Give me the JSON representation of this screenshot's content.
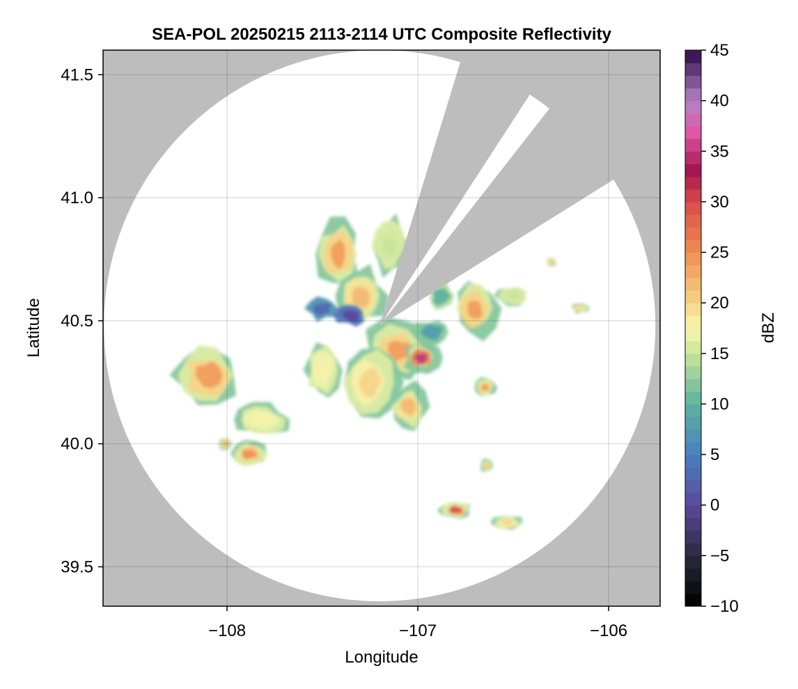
{
  "chart_data": {
    "type": "heatmap",
    "title": "SEA-POL 20250215 2113-2114 UTC Composite Reflectivity",
    "xlabel": "Longitude",
    "ylabel": "Latitude",
    "xlim": [
      -108.65,
      -105.73
    ],
    "ylim": [
      39.34,
      41.6
    ],
    "xticks": [
      -108,
      -107,
      -106
    ],
    "xtick_labels": [
      "−108",
      "−107",
      "−106"
    ],
    "yticks": [
      39.5,
      40.0,
      40.5,
      41.0,
      41.5
    ],
    "ytick_labels": [
      "39.5",
      "40.0",
      "40.5",
      "41.0",
      "41.5"
    ],
    "grid": true,
    "background_color": "#bdbdbd",
    "coverage_color": "#ffffff",
    "radar_center": {
      "lon": -107.2,
      "lat": 40.48
    },
    "coverage_radius_deg_lat": 1.12,
    "blocked_sectors_deg_from_north": [
      [
        17,
        33
      ],
      [
        38,
        58
      ]
    ],
    "colorbar": {
      "label": "dBZ",
      "range": [
        -10,
        45
      ],
      "ticks": [
        -10,
        -5,
        0,
        5,
        10,
        15,
        20,
        25,
        30,
        35,
        40,
        45
      ],
      "tick_labels": [
        "−10",
        "−5",
        "0",
        "5",
        "10",
        "15",
        "20",
        "25",
        "30",
        "35",
        "40",
        "45"
      ],
      "colormap_stops": [
        [
          -10,
          "#000000"
        ],
        [
          -5,
          "#2b2a3e"
        ],
        [
          0,
          "#5b4a9a"
        ],
        [
          5,
          "#4a7fc0"
        ],
        [
          10,
          "#5bb39e"
        ],
        [
          15,
          "#c9e49c"
        ],
        [
          17.5,
          "#f7f7b0"
        ],
        [
          20,
          "#f6d488"
        ],
        [
          25,
          "#ef8f52"
        ],
        [
          30,
          "#d84a4a"
        ],
        [
          33,
          "#a3154e"
        ],
        [
          37,
          "#e05aa8"
        ],
        [
          40,
          "#b184c6"
        ],
        [
          45,
          "#2e0a47"
        ]
      ]
    },
    "echo_cells": [
      {
        "lon": -107.42,
        "lat": 40.77,
        "rlon": 0.12,
        "rlat": 0.15,
        "dbz": 24
      },
      {
        "lon": -107.3,
        "lat": 40.6,
        "rlon": 0.14,
        "rlat": 0.12,
        "dbz": 22
      },
      {
        "lon": -107.15,
        "lat": 40.8,
        "rlon": 0.1,
        "rlat": 0.12,
        "dbz": 15
      },
      {
        "lon": -107.5,
        "lat": 40.55,
        "rlon": 0.08,
        "rlat": 0.05,
        "dbz": 3
      },
      {
        "lon": -107.35,
        "lat": 40.52,
        "rlon": 0.08,
        "rlat": 0.04,
        "dbz": 0
      },
      {
        "lon": -107.1,
        "lat": 40.38,
        "rlon": 0.18,
        "rlat": 0.12,
        "dbz": 24
      },
      {
        "lon": -106.98,
        "lat": 40.35,
        "rlon": 0.1,
        "rlat": 0.06,
        "dbz": 35
      },
      {
        "lon": -106.92,
        "lat": 40.45,
        "rlon": 0.1,
        "rlat": 0.06,
        "dbz": 8
      },
      {
        "lon": -107.25,
        "lat": 40.25,
        "rlon": 0.15,
        "rlat": 0.15,
        "dbz": 20
      },
      {
        "lon": -107.05,
        "lat": 40.15,
        "rlon": 0.1,
        "rlat": 0.1,
        "dbz": 22
      },
      {
        "lon": -107.5,
        "lat": 40.3,
        "rlon": 0.1,
        "rlat": 0.12,
        "dbz": 18
      },
      {
        "lon": -106.7,
        "lat": 40.55,
        "rlon": 0.12,
        "rlat": 0.12,
        "dbz": 24
      },
      {
        "lon": -106.88,
        "lat": 40.6,
        "rlon": 0.08,
        "rlat": 0.06,
        "dbz": 10
      },
      {
        "lon": -106.5,
        "lat": 40.6,
        "rlon": 0.09,
        "rlat": 0.04,
        "dbz": 15
      },
      {
        "lon": -106.65,
        "lat": 40.23,
        "rlon": 0.06,
        "rlat": 0.04,
        "dbz": 24
      },
      {
        "lon": -108.1,
        "lat": 40.28,
        "rlon": 0.18,
        "rlat": 0.14,
        "dbz": 24
      },
      {
        "lon": -107.82,
        "lat": 40.1,
        "rlon": 0.15,
        "rlat": 0.07,
        "dbz": 18
      },
      {
        "lon": -107.88,
        "lat": 39.96,
        "rlon": 0.1,
        "rlat": 0.06,
        "dbz": 25
      },
      {
        "lon": -108.01,
        "lat": 40.0,
        "rlon": 0.03,
        "rlat": 0.03,
        "dbz": 24
      },
      {
        "lon": -106.8,
        "lat": 39.73,
        "rlon": 0.09,
        "rlat": 0.04,
        "dbz": 30
      },
      {
        "lon": -106.53,
        "lat": 39.68,
        "rlon": 0.08,
        "rlat": 0.03,
        "dbz": 20
      },
      {
        "lon": -106.3,
        "lat": 40.74,
        "rlon": 0.03,
        "rlat": 0.02,
        "dbz": 22
      },
      {
        "lon": -106.15,
        "lat": 40.55,
        "rlon": 0.05,
        "rlat": 0.02,
        "dbz": 20
      },
      {
        "lon": -106.64,
        "lat": 39.91,
        "rlon": 0.03,
        "rlat": 0.03,
        "dbz": 22
      }
    ]
  }
}
